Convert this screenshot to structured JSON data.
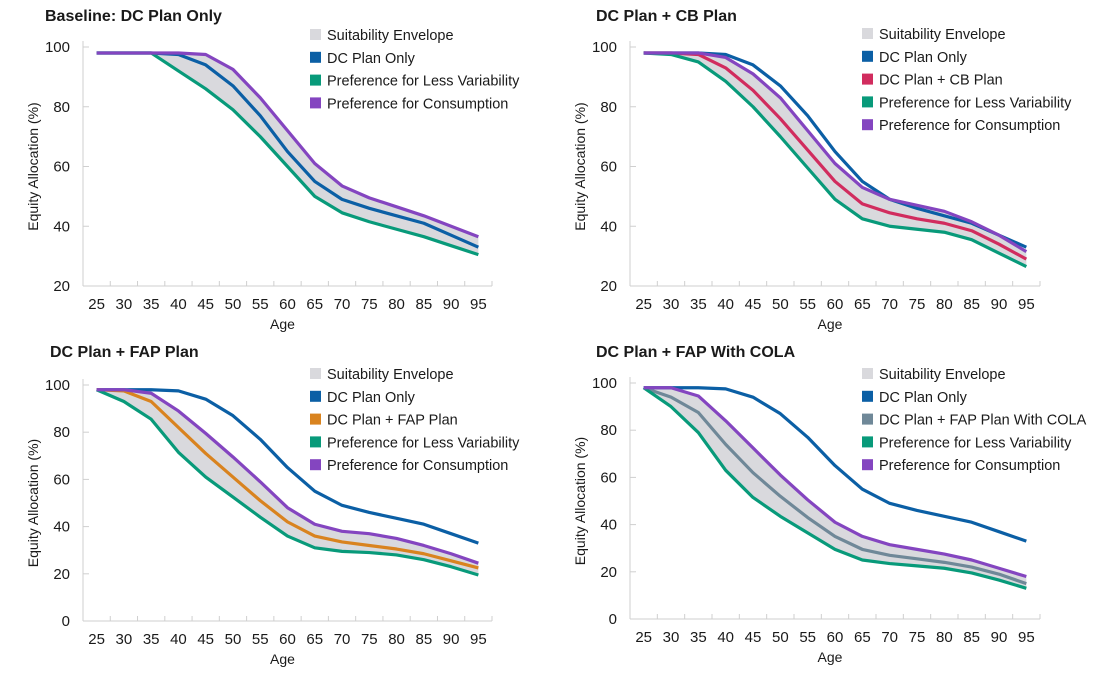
{
  "chart_data": [
    {
      "type": "line",
      "title": "Baseline: DC Plan Only",
      "xlabel": "Age",
      "ylabel": "Equity Allocation (%)",
      "categories": [
        "25",
        "30",
        "35",
        "40",
        "45",
        "50",
        "55",
        "60",
        "65",
        "70",
        "75",
        "80",
        "85",
        "90",
        "95"
      ],
      "ylim": [
        20,
        100
      ],
      "yticks": [
        20,
        40,
        60,
        80,
        100
      ],
      "grid": false,
      "legend_position": "top-right",
      "envelope": {
        "name": "Suitability Envelope",
        "color": "#d9d9dd",
        "lower": "Preference for Less Variability",
        "upper": "Preference for Consumption"
      },
      "series": [
        {
          "name": "DC Plan Only",
          "color": "#0b5fa5",
          "values": [
            98,
            98,
            98,
            97.5,
            94,
            87,
            77,
            65,
            55,
            49,
            46,
            43.5,
            41,
            37,
            33
          ]
        },
        {
          "name": "Preference for Less Variability",
          "color": "#089a7a",
          "values": [
            98,
            98,
            98,
            92,
            86,
            79,
            70,
            60,
            50,
            44.5,
            41.5,
            39,
            36.5,
            33.5,
            30.5
          ]
        },
        {
          "name": "Preference for Consumption",
          "color": "#8445c0",
          "values": [
            98,
            98,
            98,
            98,
            97.5,
            92.5,
            83,
            72,
            61,
            53.5,
            49.5,
            46.5,
            43.5,
            40,
            36.5
          ]
        }
      ]
    },
    {
      "type": "line",
      "title": "DC Plan + CB Plan",
      "xlabel": "Age",
      "ylabel": "Equity Allocation (%)",
      "categories": [
        "25",
        "30",
        "35",
        "40",
        "45",
        "50",
        "55",
        "60",
        "65",
        "70",
        "75",
        "80",
        "85",
        "90",
        "95"
      ],
      "ylim": [
        20,
        100
      ],
      "yticks": [
        20,
        40,
        60,
        80,
        100
      ],
      "grid": false,
      "legend_position": "top-right",
      "envelope": {
        "name": "Suitability Envelope",
        "color": "#d9d9dd",
        "lower": "Preference for Less Variability",
        "upper": "Preference for Consumption"
      },
      "series": [
        {
          "name": "DC Plan Only",
          "color": "#0b5fa5",
          "values": [
            98,
            98,
            98,
            97.5,
            94,
            87,
            77,
            65,
            55,
            49,
            46,
            43.5,
            41,
            37,
            33
          ]
        },
        {
          "name": "DC Plan + CB Plan",
          "color": "#d12c5e",
          "values": [
            98,
            98,
            97.5,
            93,
            85.5,
            76,
            65.5,
            55,
            47.5,
            44.5,
            42.5,
            41,
            38.5,
            34,
            29
          ]
        },
        {
          "name": "Preference for Less Variability",
          "color": "#089a7a",
          "values": [
            98,
            97.5,
            95,
            88.5,
            80,
            70,
            59.5,
            49,
            42.5,
            40,
            39,
            38,
            35.5,
            31,
            26.5
          ]
        },
        {
          "name": "Preference for Consumption",
          "color": "#8445c0",
          "values": [
            98,
            98,
            98,
            96.5,
            91,
            83,
            72,
            61,
            53,
            49,
            47,
            45,
            41.5,
            37,
            31.5
          ]
        }
      ]
    },
    {
      "type": "line",
      "title": "DC Plan + FAP Plan",
      "xlabel": "Age",
      "ylabel": "Equity Allocation (%)",
      "categories": [
        "25",
        "30",
        "35",
        "40",
        "45",
        "50",
        "55",
        "60",
        "65",
        "70",
        "75",
        "80",
        "85",
        "90",
        "95"
      ],
      "ylim": [
        0,
        100
      ],
      "yticks": [
        0,
        20,
        40,
        60,
        80,
        100
      ],
      "grid": false,
      "legend_position": "top-right",
      "envelope": {
        "name": "Suitability Envelope",
        "color": "#d9d9dd",
        "lower": "Preference for Less Variability",
        "upper": "Preference for Consumption"
      },
      "series": [
        {
          "name": "DC Plan Only",
          "color": "#0b5fa5",
          "values": [
            98,
            98,
            98,
            97.5,
            94,
            87,
            77,
            65,
            55,
            49,
            46,
            43.5,
            41,
            37,
            33
          ]
        },
        {
          "name": "DC Plan + FAP Plan",
          "color": "#d9831f",
          "values": [
            98,
            97.5,
            93,
            82,
            71,
            61,
            51,
            42,
            36,
            33.5,
            32,
            30.5,
            28.5,
            25.5,
            22.5
          ]
        },
        {
          "name": "Preference for Less Variability",
          "color": "#089a7a",
          "values": [
            98,
            93,
            85.5,
            71.5,
            61,
            52.5,
            44,
            36,
            31,
            29.5,
            29,
            28,
            26,
            23,
            19.5
          ]
        },
        {
          "name": "Preference for Consumption",
          "color": "#8445c0",
          "values": [
            98,
            98,
            96.5,
            89,
            79.5,
            69.5,
            59,
            48,
            41,
            38,
            37,
            35,
            32,
            28.5,
            24.5
          ]
        }
      ]
    },
    {
      "type": "line",
      "title": "DC Plan + FAP With COLA",
      "xlabel": "Age",
      "ylabel": "Equity Allocation (%)",
      "categories": [
        "25",
        "30",
        "35",
        "40",
        "45",
        "50",
        "55",
        "60",
        "65",
        "70",
        "75",
        "80",
        "85",
        "90",
        "95"
      ],
      "ylim": [
        0,
        100
      ],
      "yticks": [
        0,
        20,
        40,
        60,
        80,
        100
      ],
      "grid": false,
      "legend_position": "top-right",
      "envelope": {
        "name": "Suitability Envelope",
        "color": "#d9d9dd",
        "lower": "Preference for Less Variability",
        "upper": "Preference for Consumption"
      },
      "series": [
        {
          "name": "DC Plan Only",
          "color": "#0b5fa5",
          "values": [
            98,
            98,
            98,
            97.5,
            94,
            87,
            77,
            65,
            55,
            49,
            46,
            43.5,
            41,
            37,
            33
          ]
        },
        {
          "name": "DC Plan + FAP Plan With COLA",
          "color": "#6f8898",
          "values": [
            98,
            94,
            87.5,
            74,
            62,
            52,
            43,
            35,
            29.5,
            27,
            25.5,
            24,
            22,
            19,
            15
          ]
        },
        {
          "name": "Preference for Less Variability",
          "color": "#089a7a",
          "values": [
            98,
            90,
            79,
            63,
            51.5,
            43.5,
            36.5,
            29.5,
            25,
            23.5,
            22.5,
            21.5,
            19.5,
            16.5,
            13
          ]
        },
        {
          "name": "Preference for Consumption",
          "color": "#8445c0",
          "values": [
            98,
            98,
            94.5,
            84,
            72.5,
            61,
            50.5,
            41,
            35,
            31.5,
            29.5,
            27.5,
            25,
            21.5,
            18
          ]
        }
      ]
    }
  ]
}
